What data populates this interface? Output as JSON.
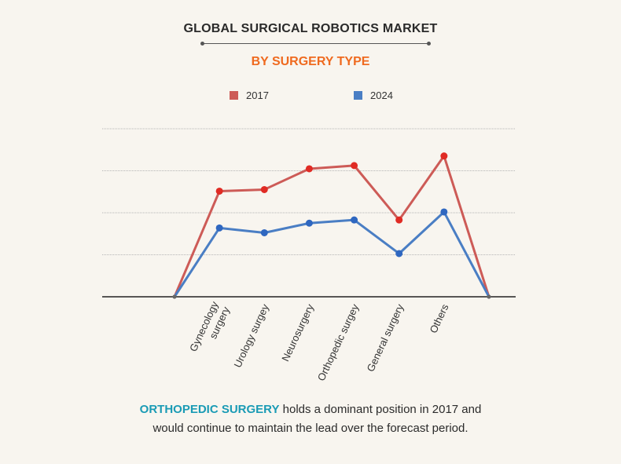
{
  "header": {
    "title": "GLOBAL SURGICAL ROBOTICS MARKET",
    "subtitle": "BY SURGERY TYPE"
  },
  "colors": {
    "series_2017": "#cd5b57",
    "series_2017_marker": "#e02b24",
    "series_2024": "#4a7ec4",
    "series_2024_marker": "#2f67c0",
    "subtitle": "#ef6a1f",
    "highlight": "#1a9bb5"
  },
  "chart_data": {
    "type": "line",
    "categories": [
      "",
      "Gynecology surgery",
      "Urology surgey",
      "Neurosurgery",
      "Orthopedic surgey",
      "General surgery",
      "Others",
      ""
    ],
    "series": [
      {
        "name": "2017",
        "values": [
          0,
          66,
          67,
          80,
          82,
          48,
          88,
          0
        ]
      },
      {
        "name": "2024",
        "values": [
          0,
          43,
          40,
          46,
          48,
          27,
          53,
          0
        ]
      }
    ],
    "ylim": [
      0,
      105
    ],
    "grid": true,
    "legend": "top-center",
    "xlabel": "",
    "ylabel": ""
  },
  "caption": {
    "highlight": "ORTHOPEDIC SURGERY",
    "line1_rest": " holds a dominant position in 2017 and",
    "line2": "would continue to maintain the lead over the forecast period."
  }
}
